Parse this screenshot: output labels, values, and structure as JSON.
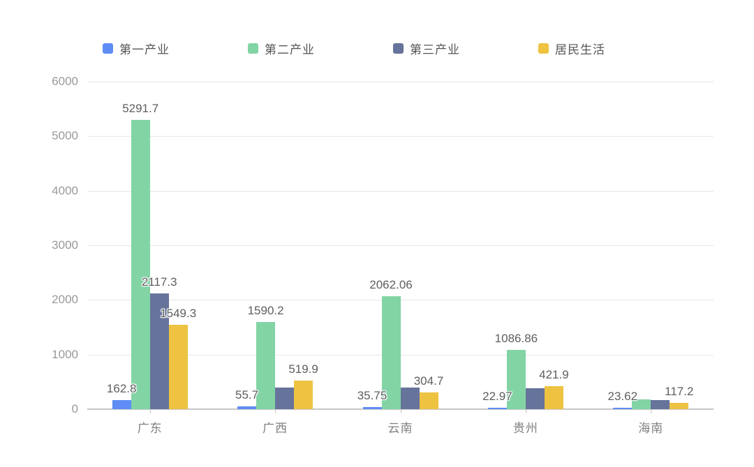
{
  "colors": {
    "background": "#ffffff",
    "grid_line": "#e7e7e7",
    "axis_line": "#c7c7c7",
    "y_tick_label": "#999999",
    "x_category_label": "#7f7f7f",
    "value_label": "#5e5e5e",
    "legend_text": "#555555"
  },
  "legend": {
    "position": "top",
    "items": [
      {
        "label": "第一产业",
        "color": "#5e8df5"
      },
      {
        "label": "第二产业",
        "color": "#82d4a5"
      },
      {
        "label": "第三产业",
        "color": "#66739b"
      },
      {
        "label": "居民生活",
        "color": "#eec342"
      }
    ]
  },
  "chart_data": {
    "type": "bar",
    "title": "",
    "xlabel": "",
    "ylabel": "",
    "grid": true,
    "legend_position": "top",
    "categories": [
      "广东",
      "广西",
      "云南",
      "贵州",
      "海南"
    ],
    "y_axis": {
      "min": 0,
      "max": 6000,
      "interval": 1000,
      "tick_labels": [
        "0",
        "1000",
        "2000",
        "3000",
        "4000",
        "5000",
        "6000"
      ]
    },
    "series": [
      {
        "name": "第一产业",
        "color": "#5e8df5",
        "values": [
          162.8,
          55.7,
          35.75,
          22.97,
          23.62
        ],
        "labels": [
          "162.8",
          "55.7",
          "35.75",
          "22.97",
          "23.62"
        ]
      },
      {
        "name": "第二产业",
        "color": "#82d4a5",
        "values": [
          5291.7,
          1590.2,
          2062.06,
          1086.86,
          185
        ],
        "labels": [
          "5291.7",
          "1590.2",
          "2062.06",
          "1086.86",
          null
        ]
      },
      {
        "name": "第三产业",
        "color": "#66739b",
        "values": [
          2117.3,
          400,
          395,
          380,
          170
        ],
        "labels": [
          "2117.3",
          null,
          null,
          null,
          null
        ]
      },
      {
        "name": "居民生活",
        "color": "#eec342",
        "values": [
          1549.3,
          519.9,
          304.7,
          421.9,
          117.2
        ],
        "labels": [
          "1549.3",
          "519.9",
          "304.7",
          "421.9",
          "117.2"
        ]
      }
    ]
  }
}
